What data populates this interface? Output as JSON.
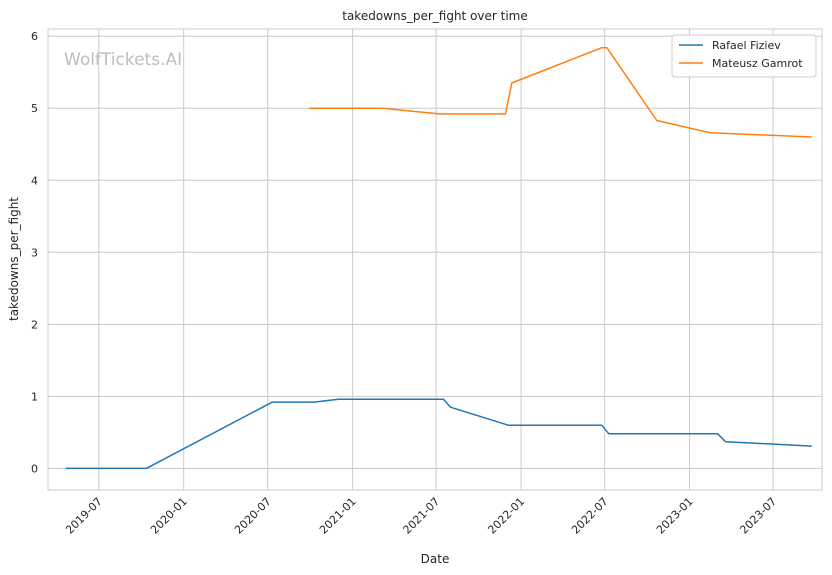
{
  "watermark": "WolfTickets.AI",
  "colors": {
    "series_1": "#1f77b4",
    "series_2": "#ff7f0e",
    "grid": "#cccccc",
    "frame": "#cccccc"
  },
  "chart_data": {
    "type": "line",
    "title": "takedowns_per_fight over time",
    "xlabel": "Date",
    "ylabel": "takedowns_per_fight",
    "x_tick_labels": [
      "2019-07",
      "2020-01",
      "2020-07",
      "2021-01",
      "2021-07",
      "2022-01",
      "2022-07",
      "2023-01",
      "2023-07"
    ],
    "y_tick_labels": [
      "0",
      "1",
      "2",
      "3",
      "4",
      "5",
      "6"
    ],
    "xlim": [
      "2019-03-13",
      "2023-10-15"
    ],
    "ylim": [
      -0.3,
      6.1
    ],
    "grid": true,
    "legend_position": "top-right",
    "series": [
      {
        "name": "Rafael Fiziev",
        "color": "#1f77b4",
        "points": [
          [
            "2019-04-20",
            0.0
          ],
          [
            "2019-10-12",
            0.0
          ],
          [
            "2020-07-11",
            0.92
          ],
          [
            "2020-10-10",
            0.92
          ],
          [
            "2020-12-01",
            0.96
          ],
          [
            "2021-07-17",
            0.96
          ],
          [
            "2021-08-01",
            0.85
          ],
          [
            "2021-12-04",
            0.6
          ],
          [
            "2022-06-25",
            0.6
          ],
          [
            "2022-07-10",
            0.48
          ],
          [
            "2023-03-03",
            0.48
          ],
          [
            "2023-03-20",
            0.37
          ],
          [
            "2023-09-23",
            0.31
          ]
        ]
      },
      {
        "name": "Mateusz Gamrot",
        "color": "#ff7f0e",
        "points": [
          [
            "2020-09-29",
            5.0
          ],
          [
            "2021-03-06",
            5.0
          ],
          [
            "2021-07-10",
            4.92
          ],
          [
            "2021-11-28",
            4.92
          ],
          [
            "2021-12-12",
            5.35
          ],
          [
            "2022-06-25",
            5.84
          ],
          [
            "2022-07-06",
            5.84
          ],
          [
            "2022-10-22",
            4.83
          ],
          [
            "2023-02-14",
            4.66
          ],
          [
            "2023-09-23",
            4.6
          ]
        ]
      }
    ]
  }
}
